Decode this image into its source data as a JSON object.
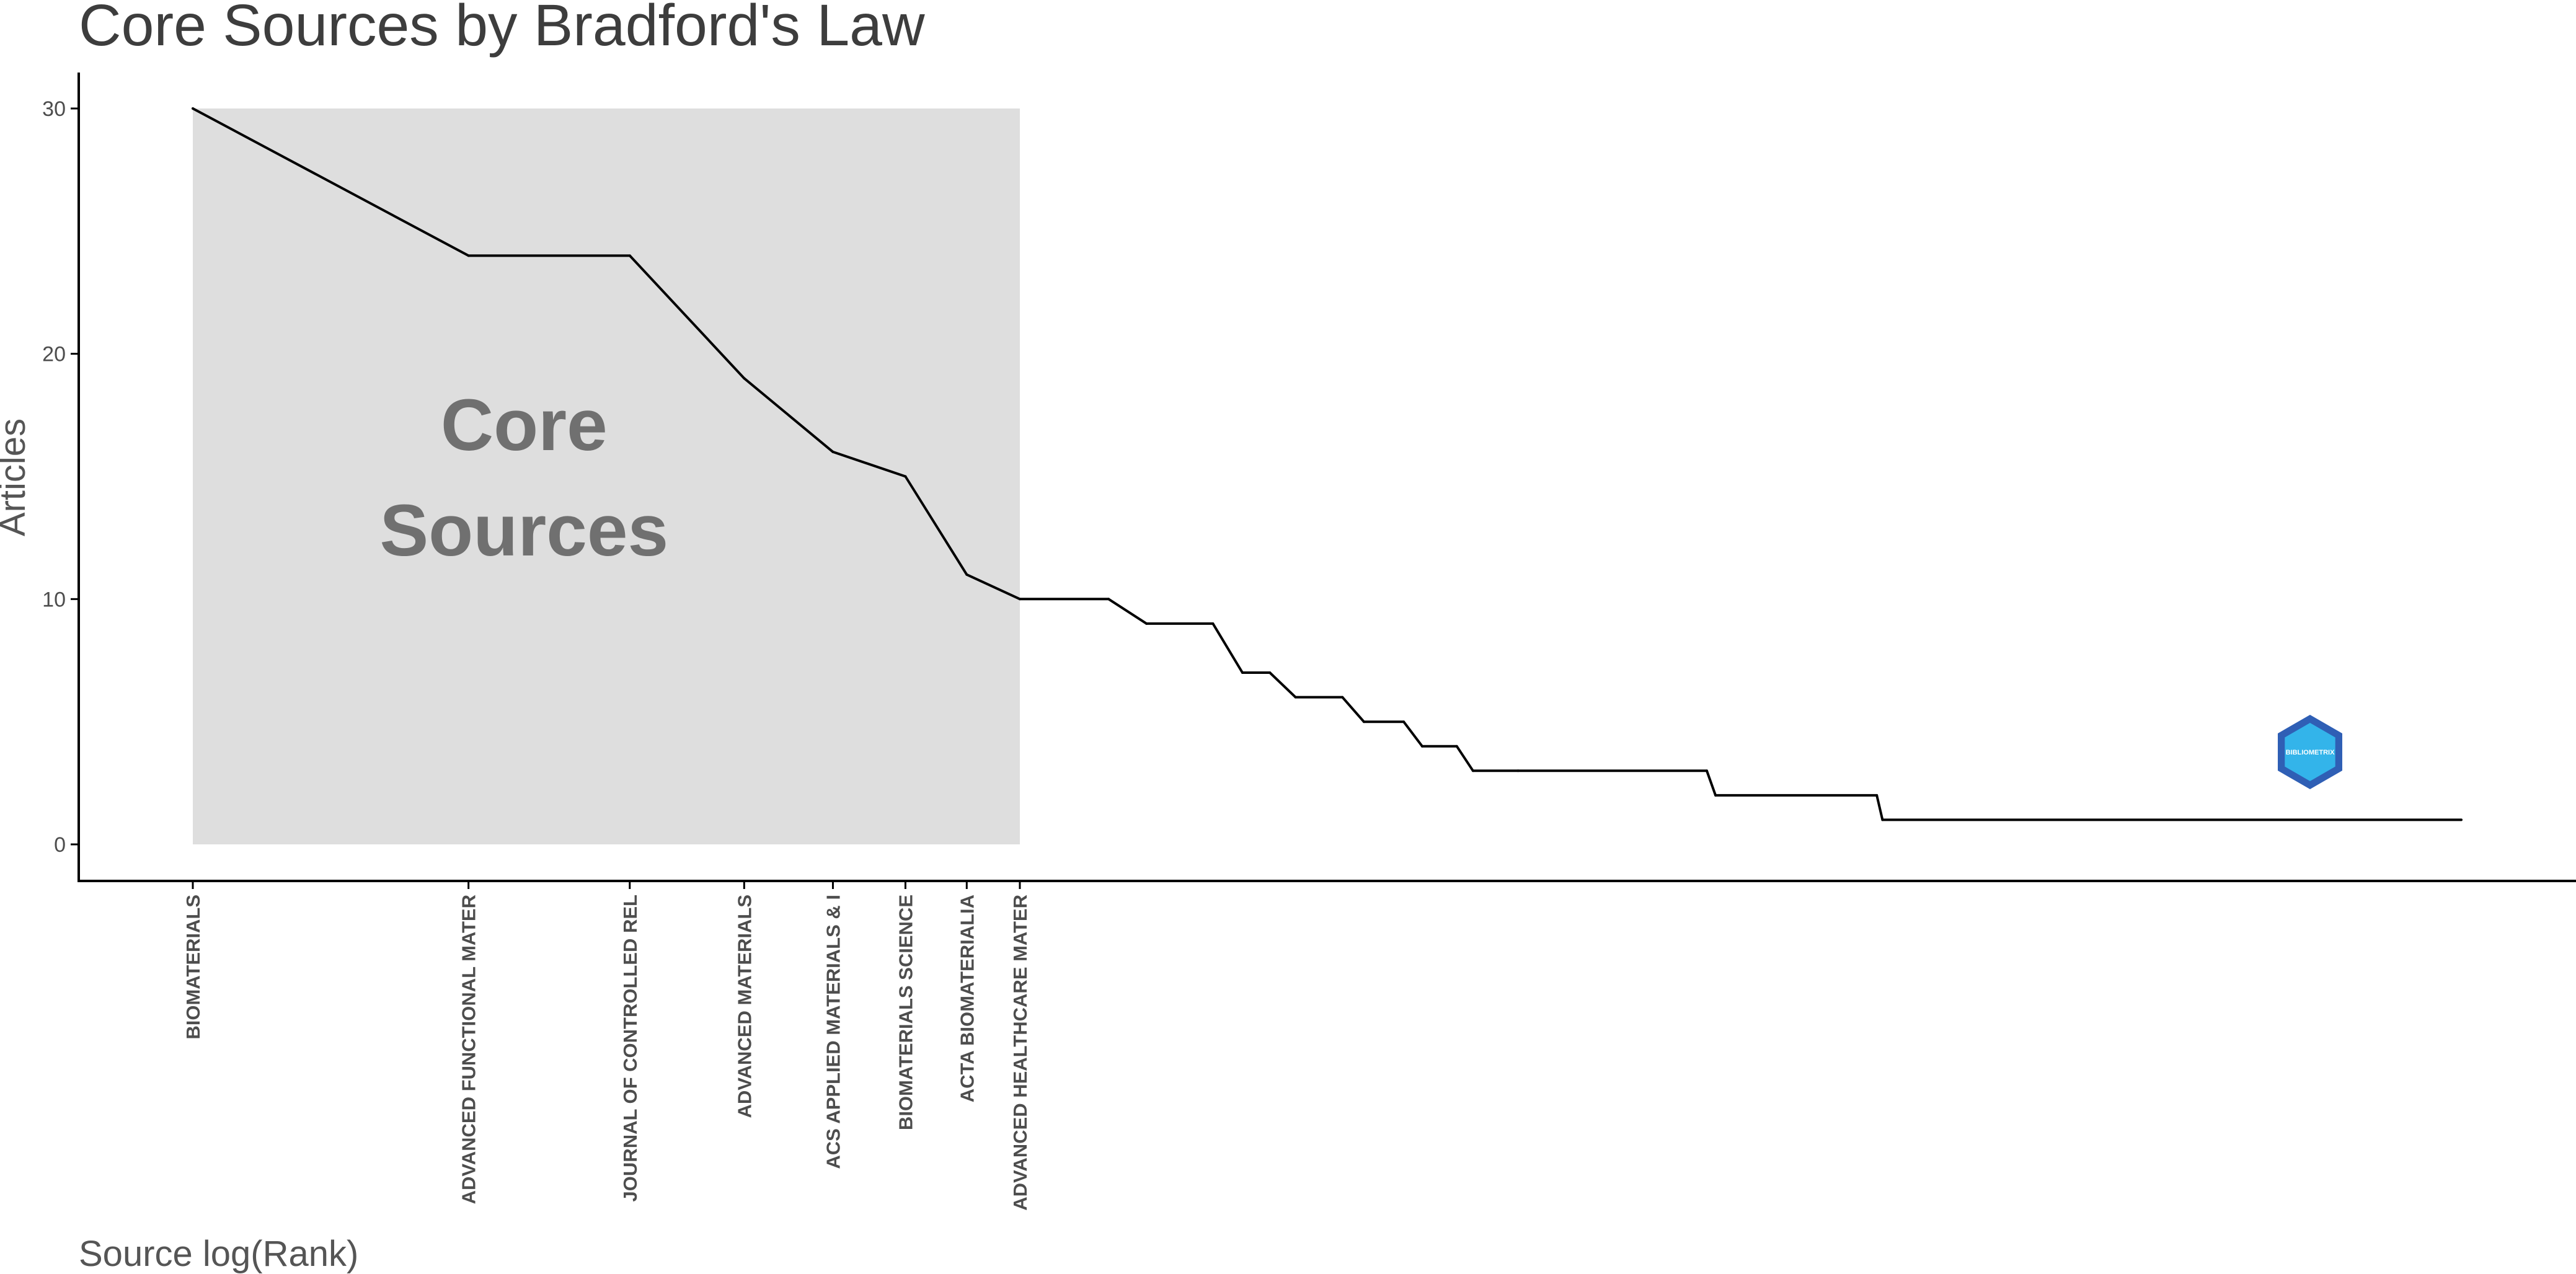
{
  "chart_data": {
    "type": "line",
    "title": "Core Sources by Bradford's Law",
    "xlabel": "Source log(Rank)",
    "ylabel": "Articles",
    "ylim": [
      -1.5,
      31.5
    ],
    "yticks": [
      0,
      10,
      20,
      30
    ],
    "grid": false,
    "core_region": {
      "label_lines": [
        "Core",
        "Sources"
      ],
      "from_source": "BIOMATERIALS",
      "to_source": "ADVANCED HEALTHCARE MATER",
      "top_value": 30,
      "fill": "#dedede"
    },
    "labeled_sources": [
      {
        "rank": 1,
        "name": "BIOMATERIALS",
        "articles": 30
      },
      {
        "rank": 2,
        "name": "ADVANCED FUNCTIONAL MATER",
        "articles": 24
      },
      {
        "rank": 3,
        "name": "JOURNAL OF CONTROLLED REL",
        "articles": 24
      },
      {
        "rank": 4,
        "name": "ADVANCED MATERIALS",
        "articles": 19
      },
      {
        "rank": 5,
        "name": "ACS APPLIED MATERIALS & I",
        "articles": 16
      },
      {
        "rank": 6,
        "name": "BIOMATERIALS SCIENCE",
        "articles": 15
      },
      {
        "rank": 7,
        "name": "ACTA BIOMATERIALIA",
        "articles": 11
      },
      {
        "rank": 8,
        "name": "ADVANCED HEALTHCARE MATER",
        "articles": 10
      }
    ],
    "series": [
      {
        "x": [
          1,
          2,
          3,
          4,
          5,
          6,
          7,
          8,
          10,
          11,
          13,
          14,
          15,
          16,
          18,
          19,
          21,
          22,
          24,
          25,
          28,
          45,
          46,
          69,
          70,
          300
        ],
        "y": [
          30,
          24,
          24,
          19,
          16,
          15,
          11,
          10,
          10,
          9,
          9,
          7,
          7,
          6,
          6,
          5,
          5,
          4,
          4,
          3,
          3,
          3,
          2,
          2,
          1,
          1
        ]
      }
    ],
    "line_color": "#000000"
  },
  "logo": {
    "text": "BIBLIOMETRIX",
    "name": "bibliometrix-logo",
    "colors": [
      "#2f5fb5",
      "#33b4ea"
    ]
  }
}
